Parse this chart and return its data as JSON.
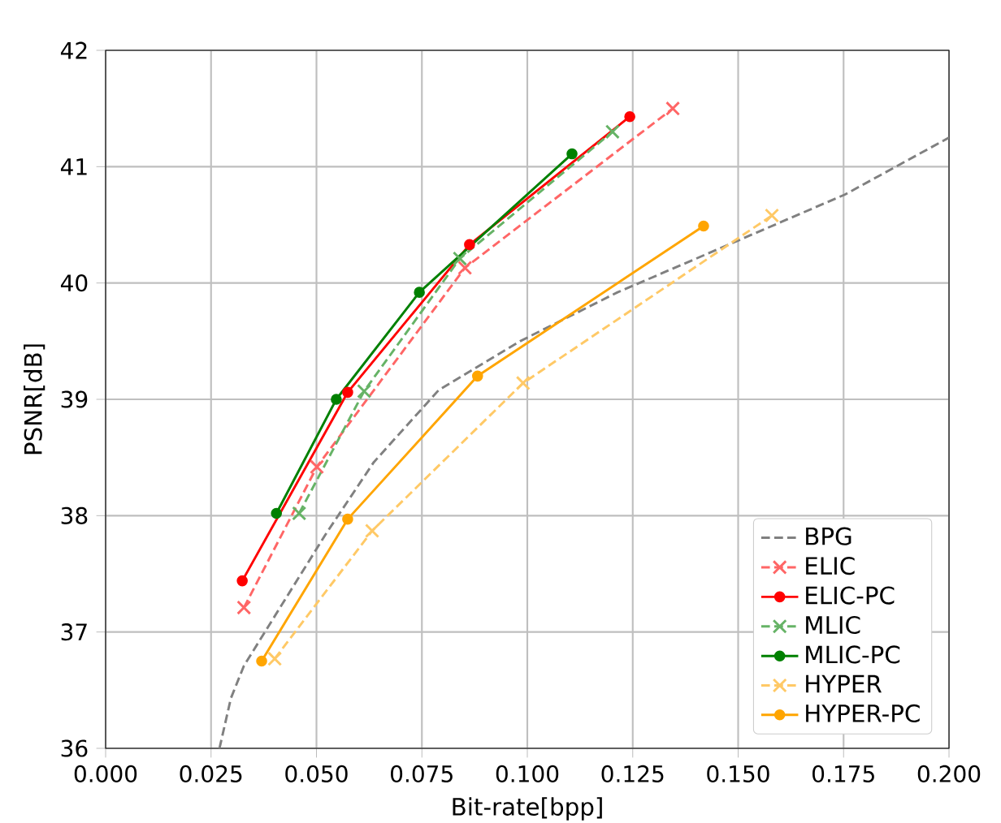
{
  "chart_data": {
    "type": "line",
    "xlabel": "Bit-rate[bpp]",
    "ylabel": "PSNR[dB]",
    "xlim": [
      0.0,
      0.2
    ],
    "ylim": [
      36,
      42
    ],
    "xticks": [
      {
        "value": 0,
        "label": "0.000"
      },
      {
        "value": 0.025,
        "label": "0.025"
      },
      {
        "value": 0.05,
        "label": "0.050"
      },
      {
        "value": 0.075,
        "label": "0.075"
      },
      {
        "value": 0.1,
        "label": "0.100"
      },
      {
        "value": 0.125,
        "label": "0.125"
      },
      {
        "value": 0.15,
        "label": "0.150"
      },
      {
        "value": 0.175,
        "label": "0.175"
      },
      {
        "value": 0.2,
        "label": "0.200"
      }
    ],
    "yticks": [
      36,
      37,
      38,
      39,
      40,
      41,
      42
    ],
    "grid": true,
    "legend": "bottom right",
    "series": [
      {
        "name": "BPG",
        "color": "#808080",
        "line_style": "dashed",
        "marker": "none",
        "x": [
          0.027,
          0.0297,
          0.0328,
          0.0412,
          0.052,
          0.0636,
          0.079,
          0.0983,
          0.1214,
          0.1484,
          0.1753,
          0.2
        ],
        "values": [
          36.0,
          36.43,
          36.71,
          37.2,
          37.83,
          38.46,
          39.08,
          39.5,
          39.92,
          40.34,
          40.76,
          41.25
        ]
      },
      {
        "name": "ELIC",
        "color": "#ff6666",
        "line_style": "dashed",
        "marker": "cross",
        "x": [
          0.0328,
          0.0501,
          0.0852,
          0.1345
        ],
        "values": [
          37.21,
          38.42,
          40.13,
          41.5
        ]
      },
      {
        "name": "ELIC-PC",
        "color": "#ff0000",
        "line_style": "solid",
        "marker": "circle",
        "x": [
          0.0324,
          0.0574,
          0.0863,
          0.1243
        ],
        "values": [
          37.44,
          39.06,
          40.33,
          41.43
        ]
      },
      {
        "name": "MLIC",
        "color": "#66b366",
        "line_style": "dashed",
        "marker": "cross",
        "x": [
          0.0459,
          0.0613,
          0.084,
          0.1202
        ],
        "values": [
          38.02,
          39.07,
          40.21,
          41.3
        ]
      },
      {
        "name": "MLIC-PC",
        "color": "#008000",
        "line_style": "solid",
        "marker": "circle",
        "x": [
          0.0405,
          0.0547,
          0.0744,
          0.1106
        ],
        "values": [
          38.02,
          39.0,
          39.92,
          41.11
        ]
      },
      {
        "name": "HYPER",
        "color": "#ffc966",
        "line_style": "dashed",
        "marker": "cross",
        "x": [
          0.0401,
          0.0632,
          0.099,
          0.158
        ],
        "values": [
          36.77,
          37.87,
          39.14,
          40.58
        ]
      },
      {
        "name": "HYPER-PC",
        "color": "#ffa500",
        "line_style": "solid",
        "marker": "circle",
        "x": [
          0.037,
          0.0574,
          0.0882,
          0.1418
        ],
        "values": [
          36.75,
          37.97,
          39.2,
          40.49
        ]
      }
    ]
  }
}
